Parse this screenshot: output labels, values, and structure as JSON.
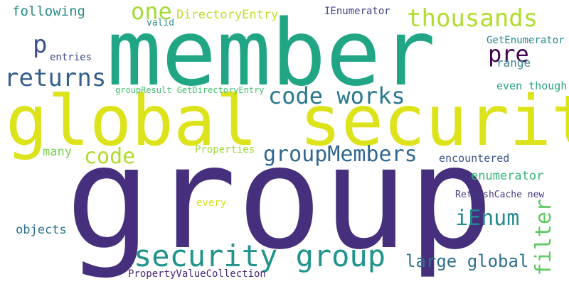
{
  "words": [
    {
      "text": "member",
      "color": "#21a685"
    },
    {
      "text": "global security",
      "color": "#dde31b"
    },
    {
      "text": "group",
      "color": "#46307e"
    },
    {
      "text": "security group",
      "color": "#20948c"
    },
    {
      "text": "thousands",
      "color": "#b0dd2f"
    },
    {
      "text": "returns",
      "color": "#355f8d"
    },
    {
      "text": "code works",
      "color": "#2a788e"
    },
    {
      "text": "groupMembers",
      "color": "#31678e"
    },
    {
      "text": "code",
      "color": "#b0dd2f"
    },
    {
      "text": "one",
      "color": "#a2da37"
    },
    {
      "text": "p",
      "color": "#3b518b"
    },
    {
      "text": "pre",
      "color": "#440154"
    },
    {
      "text": "iEnum",
      "color": "#238a8d"
    },
    {
      "text": "filter",
      "color": "#5ec962"
    },
    {
      "text": "large global",
      "color": "#2d708e"
    },
    {
      "text": "following",
      "color": "#2a8a87"
    },
    {
      "text": "DirectoryEntry",
      "color": "#bddf26"
    },
    {
      "text": "IEnumerator",
      "color": "#404387"
    },
    {
      "text": "valid",
      "color": "#2a8a87"
    },
    {
      "text": "entries",
      "color": "#3e4a89"
    },
    {
      "text": "GetEnumerator",
      "color": "#23898e"
    },
    {
      "text": "range",
      "color": "#3f878d"
    },
    {
      "text": "even though",
      "color": "#25a584"
    },
    {
      "text": "groupResult GetDirectoryEntry",
      "color": "#45bf70"
    },
    {
      "text": "many",
      "color": "#7ad151"
    },
    {
      "text": "Properties",
      "color": "#a0da39"
    },
    {
      "text": "encountered",
      "color": "#3a538b"
    },
    {
      "text": "enumerator",
      "color": "#37b878"
    },
    {
      "text": "RefreshCache new",
      "color": "#443983"
    },
    {
      "text": "every",
      "color": "#d8e219"
    },
    {
      "text": "objects",
      "color": "#2c728e"
    },
    {
      "text": "PropertyValueCollection",
      "color": "#482878"
    }
  ]
}
